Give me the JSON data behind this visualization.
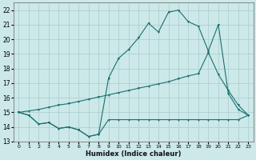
{
  "xlabel": "Humidex (Indice chaleur)",
  "bg_color": "#cce8e8",
  "grid_color": "#aacccc",
  "line_color": "#1a7070",
  "xlim": [
    -0.5,
    23.5
  ],
  "ylim": [
    13,
    22.5
  ],
  "xticks": [
    0,
    1,
    2,
    3,
    4,
    5,
    6,
    7,
    8,
    9,
    10,
    11,
    12,
    13,
    14,
    15,
    16,
    17,
    18,
    19,
    20,
    21,
    22,
    23
  ],
  "yticks": [
    13,
    14,
    15,
    16,
    17,
    18,
    19,
    20,
    21,
    22
  ],
  "line1_x": [
    0,
    1,
    2,
    3,
    4,
    5,
    6,
    7,
    8,
    9,
    10,
    11,
    12,
    13,
    14,
    15,
    16,
    17,
    18,
    19,
    20,
    21,
    22,
    23
  ],
  "line1_y": [
    15.0,
    14.8,
    14.2,
    14.3,
    13.9,
    14.0,
    13.8,
    13.35,
    13.5,
    14.5,
    14.5,
    14.5,
    14.5,
    14.5,
    14.5,
    14.5,
    14.5,
    14.5,
    14.5,
    14.5,
    14.5,
    14.5,
    14.5,
    14.8
  ],
  "line2_x": [
    0,
    1,
    2,
    3,
    4,
    5,
    6,
    7,
    8,
    9,
    10,
    11,
    12,
    13,
    14,
    15,
    16,
    17,
    18,
    19,
    20,
    21,
    22,
    23
  ],
  "line2_y": [
    15.0,
    15.1,
    15.2,
    15.35,
    15.5,
    15.6,
    15.75,
    15.9,
    16.05,
    16.2,
    16.35,
    16.5,
    16.65,
    16.8,
    16.95,
    17.1,
    17.3,
    17.5,
    17.65,
    19.1,
    17.6,
    16.5,
    15.5,
    14.8
  ],
  "line3_x": [
    0,
    1,
    2,
    3,
    4,
    5,
    6,
    7,
    8,
    9,
    10,
    11,
    12,
    13,
    14,
    15,
    16,
    17,
    18,
    19,
    20,
    21,
    22,
    23
  ],
  "line3_y": [
    15.0,
    14.8,
    14.2,
    14.3,
    13.9,
    14.0,
    13.8,
    13.35,
    13.5,
    17.35,
    18.7,
    19.3,
    20.1,
    21.1,
    20.5,
    21.85,
    22.0,
    21.2,
    20.9,
    19.2,
    21.0,
    16.3,
    15.2,
    14.8
  ]
}
